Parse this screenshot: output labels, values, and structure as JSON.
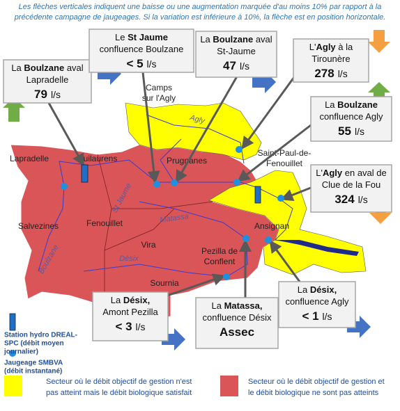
{
  "note": [
    "Les flèches verticales indiquent une baisse ou une augmentation marquée d'au moins 10% par rapport à la",
    "précédente campagne de jaugeages. Si la variation est inférieure à 10%, la flèche est en position horizontale."
  ],
  "callouts": [
    {
      "lines": [
        [
          {
            "t": "La "
          },
          {
            "b": "Boulzane"
          },
          {
            "t": " aval"
          }
        ],
        [
          {
            "t": "Lapradelle"
          }
        ]
      ],
      "value": "79",
      "unit": "l/s"
    },
    {
      "lines": [
        [
          {
            "t": "Le "
          },
          {
            "b": "St Jaume"
          }
        ],
        [
          {
            "t": "confluence Boulzane"
          }
        ]
      ],
      "value": "< 5",
      "unit": "l/s"
    },
    {
      "lines": [
        [
          {
            "t": "La "
          },
          {
            "b": "Boulzane"
          },
          {
            "t": " aval"
          }
        ],
        [
          {
            "t": "St-Jaume"
          }
        ]
      ],
      "value": "47",
      "unit": "l/s"
    },
    {
      "lines": [
        [
          {
            "t": "L'"
          },
          {
            "b": "Agly"
          },
          {
            "t": " à la"
          }
        ],
        [
          {
            "t": "Tirounère"
          }
        ]
      ],
      "value": "278",
      "unit": "l/s"
    },
    {
      "lines": [
        [
          {
            "t": "La "
          },
          {
            "b": "Boulzane"
          }
        ],
        [
          {
            "t": "confluence Agly"
          }
        ]
      ],
      "value": "55",
      "unit": "l/s"
    },
    {
      "lines": [
        [
          {
            "t": "L'"
          },
          {
            "b": "Agly"
          },
          {
            "t": " en aval de"
          }
        ],
        [
          {
            "t": "Clue de la Fou"
          }
        ]
      ],
      "value": "324",
      "unit": "l/s"
    },
    {
      "lines": [
        [
          {
            "t": "La "
          },
          {
            "b": "Désix,"
          }
        ],
        [
          {
            "t": "Amont Pezilla"
          }
        ]
      ],
      "value": "< 3",
      "unit": "l/s"
    },
    {
      "lines": [
        [
          {
            "t": "La "
          },
          {
            "b": "Matassa,"
          }
        ],
        [
          {
            "t": "confluence Désix"
          }
        ]
      ],
      "value": "Assec"
    },
    {
      "lines": [
        [
          {
            "t": "La "
          },
          {
            "b": "Désix,"
          }
        ],
        [
          {
            "t": "confluence Agly"
          }
        ]
      ],
      "value": "< 1",
      "unit": "l/s"
    }
  ],
  "places": [
    [
      "Lapradelle"
    ],
    [
      "Puilaurens"
    ],
    [
      "Camps",
      "sur l'Agly"
    ],
    [
      "Prugnanes"
    ],
    [
      "Saint-Paul-de-",
      "Fenouillet"
    ],
    [
      "Salvezines"
    ],
    [
      "Fenouillet"
    ],
    [
      "Vira"
    ],
    [
      "Pezilla de",
      "Conflent"
    ],
    [
      "Sournia"
    ],
    [
      "Ansignan"
    ]
  ],
  "rivers": [
    "Agly",
    "St Jaume",
    "Matassa",
    "Désix",
    "Boulzane"
  ],
  "legend": {
    "station": [
      "Station hydro DREAL-",
      "SPC (débit moyen",
      "journalier)"
    ],
    "jaugeage": [
      "Jaugeage SMBVA",
      "(débit instantané)"
    ],
    "yellow": [
      "Secteur où le débit objectif de gestion n'est",
      "pas atteint mais le débit biologique satisfait"
    ],
    "red": [
      "Secteur où le débit objectif de gestion et",
      "le débit biologique ne sont pas atteints"
    ]
  }
}
